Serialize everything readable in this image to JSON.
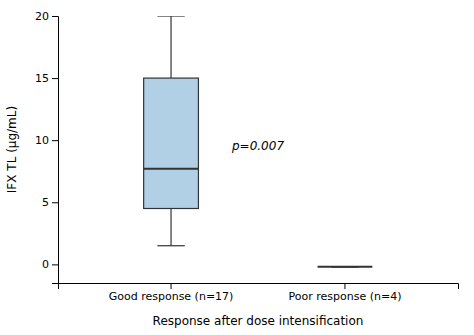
{
  "chart_data": {
    "type": "box",
    "xlabel": "Response after dose intensification",
    "ylabel": "IFX TL (μg/mL)",
    "categories": [
      "Good response (n=17)",
      "Poor response (n=4)"
    ],
    "boxes": [
      {
        "median": 7.7,
        "q1": 4.5,
        "q3": 15.0,
        "whisker_low": 1.5,
        "whisker_high": 20.0
      },
      {
        "median": -0.2,
        "q1": -0.2,
        "q3": -0.2,
        "whisker_low": -0.2,
        "whisker_high": -0.2
      }
    ],
    "annotation": "p=0.007",
    "ylim": [
      -1.5,
      20
    ],
    "yticks": [
      0,
      5,
      10,
      15,
      20
    ]
  }
}
